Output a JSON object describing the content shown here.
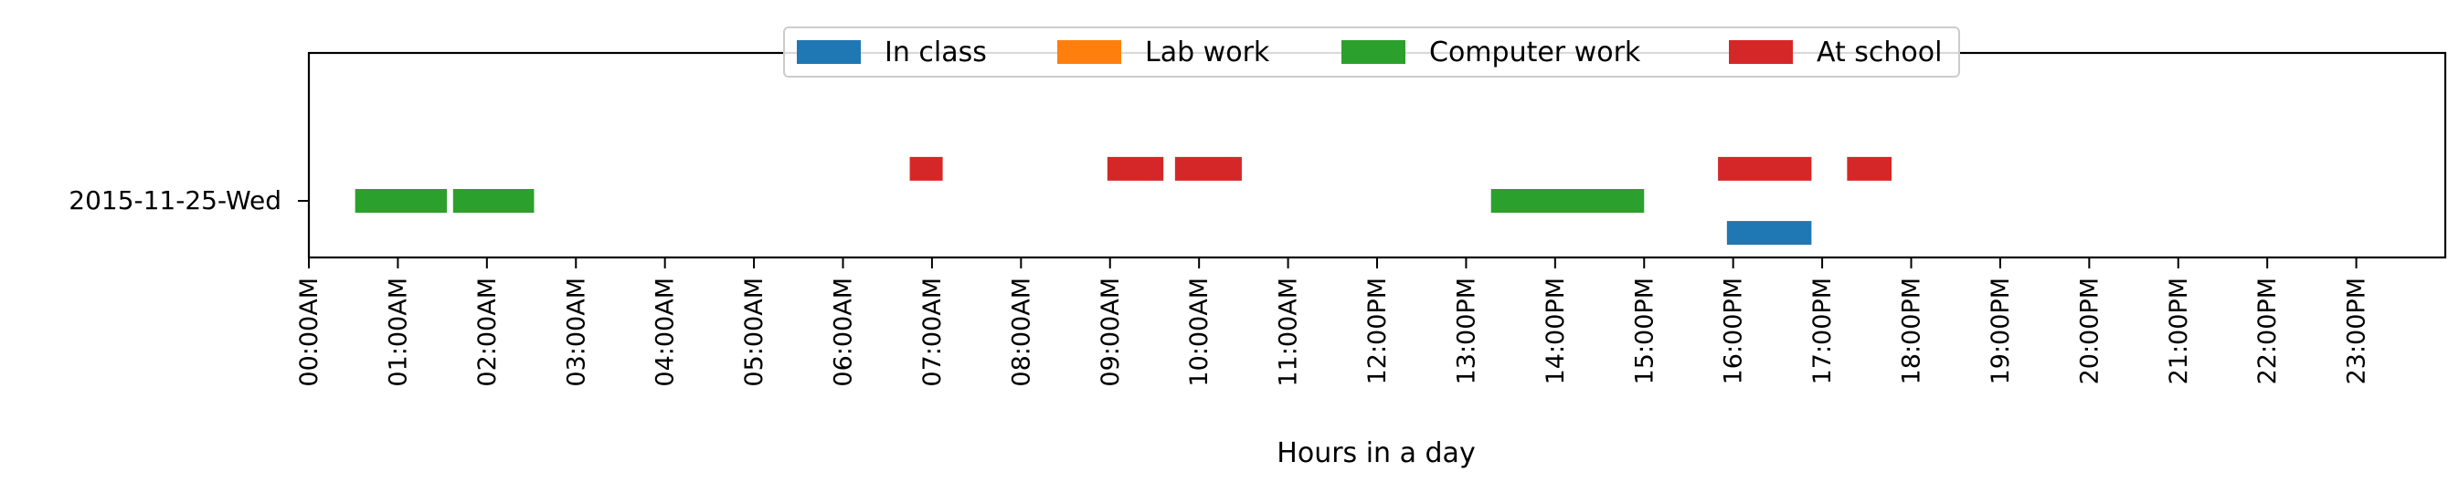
{
  "chart_data": {
    "type": "timeline",
    "xlabel": "Hours in a day",
    "xlim": [
      0,
      24
    ],
    "y_categories": [
      "2015-11-25-Wed"
    ],
    "x_ticks": [
      "00:00AM",
      "01:00AM",
      "02:00AM",
      "03:00AM",
      "04:00AM",
      "05:00AM",
      "06:00AM",
      "07:00AM",
      "08:00AM",
      "09:00AM",
      "10:00AM",
      "11:00AM",
      "12:00PM",
      "13:00PM",
      "14:00PM",
      "15:00PM",
      "16:00PM",
      "17:00PM",
      "18:00PM",
      "19:00PM",
      "20:00PM",
      "21:00PM",
      "22:00PM",
      "23:00PM"
    ],
    "legend": {
      "placement": "top-center",
      "entries": [
        {
          "label": "In class",
          "color": "#1f77b4"
        },
        {
          "label": "Lab work",
          "color": "#ff7f0e"
        },
        {
          "label": "Computer work",
          "color": "#2ca02c"
        },
        {
          "label": "At school",
          "color": "#d62728"
        }
      ]
    },
    "series": [
      {
        "name": "In class",
        "color": "#1f77b4",
        "lane": -1,
        "intervals": [
          [
            15.93,
            16.88
          ]
        ]
      },
      {
        "name": "Lab work",
        "color": "#ff7f0e",
        "lane": 0,
        "intervals": []
      },
      {
        "name": "Computer work",
        "color": "#2ca02c",
        "lane": 0,
        "intervals": [
          [
            0.52,
            1.55
          ],
          [
            1.62,
            2.53
          ],
          [
            13.28,
            15.0
          ]
        ]
      },
      {
        "name": "At school",
        "color": "#d62728",
        "lane": 1,
        "intervals": [
          [
            6.75,
            7.12
          ],
          [
            8.97,
            9.6
          ],
          [
            9.73,
            10.48
          ],
          [
            15.83,
            16.88
          ],
          [
            17.28,
            17.78
          ]
        ]
      }
    ]
  }
}
